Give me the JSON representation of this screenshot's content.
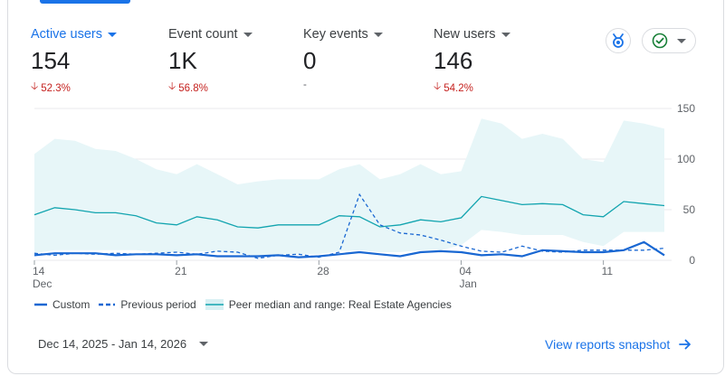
{
  "metrics": [
    {
      "label": "Active users",
      "value": "154",
      "change": "52.3%",
      "direction": "down",
      "active": true
    },
    {
      "label": "Event count",
      "value": "1K",
      "change": "56.8%",
      "direction": "down",
      "active": false
    },
    {
      "label": "Key events",
      "value": "0",
      "change": "-",
      "direction": "none",
      "active": false
    },
    {
      "label": "New users",
      "value": "146",
      "change": "54.2%",
      "direction": "down",
      "active": false
    }
  ],
  "chart_data": {
    "type": "line",
    "x_tick_labels": [
      "14",
      "21",
      "28",
      "04",
      "11"
    ],
    "x_sub_labels": [
      "Dec",
      "",
      "",
      "Jan",
      ""
    ],
    "x_tick_days": [
      0,
      7,
      14,
      21,
      28
    ],
    "y_ticks": [
      "150",
      "100",
      "50",
      "0"
    ],
    "ylim": [
      0,
      150
    ],
    "grid": true,
    "series": [
      {
        "name": "Custom",
        "style": "solid",
        "values": [
          5,
          7,
          7,
          7,
          5,
          6,
          6,
          5,
          6,
          4,
          4,
          4,
          5,
          3,
          4,
          6,
          8,
          6,
          4,
          8,
          9,
          8,
          5,
          6,
          4,
          10,
          9,
          8,
          8,
          10,
          18,
          5
        ]
      },
      {
        "name": "Previous period",
        "style": "dashed",
        "values": [
          7,
          5,
          7,
          6,
          7,
          6,
          7,
          8,
          6,
          9,
          8,
          2,
          5,
          6,
          3,
          8,
          65,
          35,
          27,
          25,
          20,
          14,
          9,
          8,
          14,
          9,
          8,
          10,
          10,
          10,
          10,
          12
        ]
      },
      {
        "name": "Peer median and range: Real Estate Agencies",
        "style": "band",
        "median": [
          45,
          52,
          50,
          47,
          47,
          44,
          37,
          35,
          43,
          40,
          33,
          32,
          35,
          35,
          35,
          44,
          43,
          33,
          35,
          40,
          38,
          42,
          63,
          59,
          55,
          56,
          55,
          45,
          43,
          58,
          56,
          54
        ],
        "upper": [
          105,
          120,
          118,
          110,
          108,
          100,
          90,
          85,
          95,
          85,
          75,
          78,
          80,
          80,
          80,
          90,
          95,
          80,
          85,
          95,
          85,
          88,
          140,
          135,
          120,
          125,
          120,
          100,
          97,
          138,
          135,
          130
        ],
        "lower": [
          7,
          10,
          10,
          10,
          10,
          10,
          8,
          8,
          9,
          8,
          6,
          5,
          6,
          6,
          6,
          9,
          10,
          8,
          8,
          10,
          10,
          15,
          30,
          28,
          25,
          25,
          25,
          18,
          14,
          28,
          28,
          28
        ]
      }
    ]
  },
  "legend": {
    "custom": "Custom",
    "previous": "Previous period",
    "peer": "Peer median and range: Real Estate Agencies"
  },
  "footer": {
    "date_range": "Dec 14, 2025 - Jan 14, 2026",
    "link": "View reports snapshot"
  },
  "colors": {
    "accent": "#1a73e8",
    "negative": "#c5221f",
    "band": "#e7f6f8",
    "median": "#12a4af",
    "series": "#1967d2",
    "check": "#188038"
  },
  "icons": {
    "insights": "insights-icon",
    "status": "check-circle-icon",
    "arrow": "arrow-right-icon"
  }
}
